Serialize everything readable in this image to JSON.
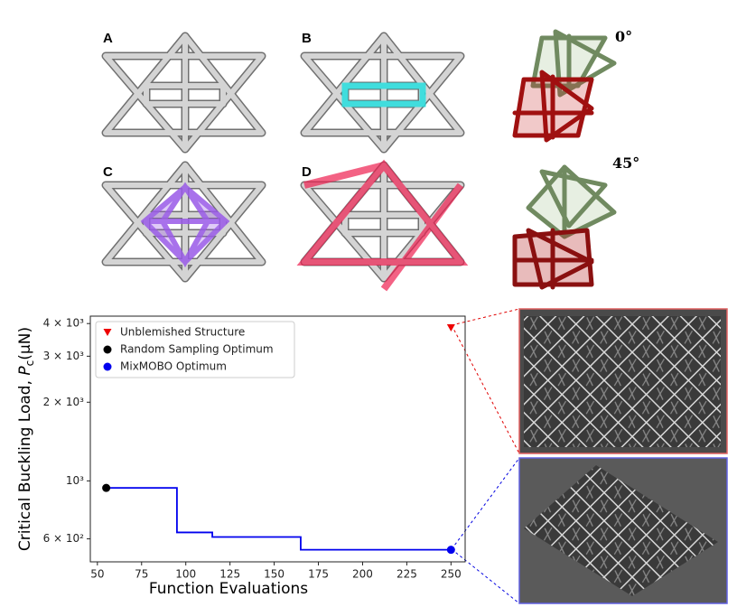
{
  "panels": {
    "a": "A",
    "b": "B",
    "c": "C",
    "d": "D",
    "angle_0": "0°",
    "angle_45": "45°"
  },
  "chart_data": {
    "type": "line",
    "xlabel": "Function Evaluations",
    "ylabel": [
      "Critical Buckling Load, ",
      "P",
      "c",
      "(μN)"
    ],
    "log_y": true,
    "xlim": [
      46,
      258
    ],
    "ylim": [
      490,
      4270
    ],
    "xticks": [
      50,
      75,
      100,
      125,
      150,
      175,
      200,
      225,
      250
    ],
    "yticks": [
      {
        "value": 600,
        "label": "6 × 10²"
      },
      {
        "value": 1000,
        "label": "10³"
      },
      {
        "value": 2000,
        "label": "2 × 10³"
      },
      {
        "value": 3000,
        "label": "3 × 10³"
      },
      {
        "value": 4000,
        "label": "4 × 10³"
      }
    ],
    "history": {
      "color": "#0000ee",
      "x": [
        55,
        95,
        95,
        115,
        115,
        165,
        165,
        250
      ],
      "values": [
        940,
        940,
        635,
        635,
        610,
        610,
        545,
        545
      ]
    },
    "series": [
      {
        "name": "Unblemished Structure",
        "color": "#ee0000",
        "marker": "triangle",
        "x": [
          250
        ],
        "values": [
          3850
        ]
      },
      {
        "name": "Random Sampling Optimum",
        "color": "#000000",
        "marker": "circle",
        "x": [
          55
        ],
        "values": [
          940
        ]
      },
      {
        "name": "MixMOBO Optimum",
        "color": "#0000ee",
        "marker": "circle",
        "x": [
          250
        ],
        "values": [
          545
        ]
      }
    ]
  }
}
